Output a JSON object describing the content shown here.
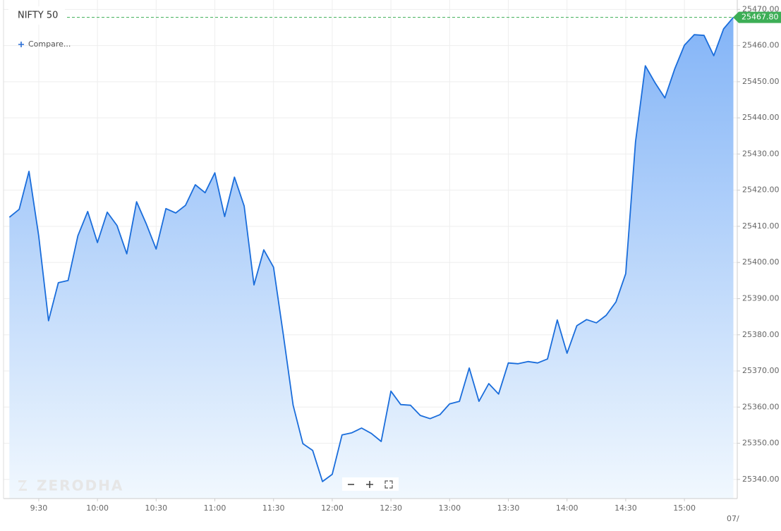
{
  "chart_data": {
    "type": "area",
    "title": "NIFTY 50",
    "compare_label": "Compare...",
    "watermark": "ZERODHA",
    "date_label": "07/",
    "color": "#1a6ddb",
    "x": [
      555,
      560,
      565,
      570,
      575,
      580,
      585,
      590,
      595,
      600,
      605,
      610,
      615,
      620,
      625,
      630,
      635,
      640,
      645,
      650,
      655,
      660,
      665,
      670,
      675,
      680,
      685,
      690,
      695,
      700,
      705,
      710,
      715,
      720,
      725,
      730,
      735,
      740,
      745,
      750,
      755,
      760,
      765,
      770,
      775,
      780,
      785,
      790,
      795,
      800,
      805,
      810,
      815,
      820,
      825,
      830,
      835,
      840,
      845,
      850,
      855,
      860,
      865,
      870,
      875,
      880,
      885,
      890,
      895,
      900,
      905,
      910,
      915,
      920,
      925
    ],
    "values": [
      25412.5,
      25414.7,
      25425.2,
      25407.3,
      25383.9,
      25394.4,
      25395.0,
      25407.4,
      25414.1,
      25405.5,
      25413.9,
      25410.2,
      25402.4,
      25416.8,
      25410.6,
      25403.7,
      25414.9,
      25413.7,
      25415.8,
      25421.5,
      25419.3,
      25424.8,
      25412.7,
      25423.6,
      25415.6,
      25393.8,
      25403.5,
      25398.7,
      25380.0,
      25360.5,
      25349.9,
      25348.0,
      25339.4,
      25341.4,
      25352.3,
      25352.9,
      25354.2,
      25352.7,
      25350.5,
      25364.4,
      25360.7,
      25360.5,
      25357.7,
      25356.8,
      25357.9,
      25360.9,
      25361.6,
      25370.8,
      25361.6,
      25366.5,
      25363.6,
      25372.2,
      25372.0,
      25372.6,
      25372.2,
      25373.3,
      25384.1,
      25374.9,
      25382.5,
      25384.2,
      25383.3,
      25385.4,
      25389.1,
      25396.9,
      25433.4,
      25454.4,
      25449.7,
      25445.5,
      25453.5,
      25460.1,
      25463.0,
      25462.8,
      25457.2,
      25464.6,
      25467.8
    ],
    "xlim": [
      552,
      927
    ],
    "xticks": [
      {
        "value": 570,
        "label": "9:30"
      },
      {
        "value": 600,
        "label": "10:00"
      },
      {
        "value": 630,
        "label": "10:30"
      },
      {
        "value": 660,
        "label": "11:00"
      },
      {
        "value": 690,
        "label": "11:30"
      },
      {
        "value": 720,
        "label": "12:00"
      },
      {
        "value": 750,
        "label": "12:30"
      },
      {
        "value": 780,
        "label": "13:00"
      },
      {
        "value": 810,
        "label": "13:30"
      },
      {
        "value": 840,
        "label": "14:00"
      },
      {
        "value": 870,
        "label": "14:30"
      },
      {
        "value": 900,
        "label": "15:00"
      }
    ],
    "ylim": [
      25334.7,
      25472.6
    ],
    "yticks": [
      {
        "value": 25340,
        "label": "25340.00"
      },
      {
        "value": 25350,
        "label": "25350.00"
      },
      {
        "value": 25360,
        "label": "25360.00"
      },
      {
        "value": 25370,
        "label": "25370.00"
      },
      {
        "value": 25380,
        "label": "25380.00"
      },
      {
        "value": 25390,
        "label": "25390.00"
      },
      {
        "value": 25400,
        "label": "25400.00"
      },
      {
        "value": 25410,
        "label": "25410.00"
      },
      {
        "value": 25420,
        "label": "25420.00"
      },
      {
        "value": 25430,
        "label": "25430.00"
      },
      {
        "value": 25440,
        "label": "25440.00"
      },
      {
        "value": 25450,
        "label": "25450.00"
      },
      {
        "value": 25460,
        "label": "25460.00"
      },
      {
        "value": 25470,
        "label": "25470.00"
      }
    ],
    "last_price": {
      "value": 25467.8,
      "label": "25467.80"
    },
    "last_price_color": "#3dae56",
    "grid": true
  }
}
